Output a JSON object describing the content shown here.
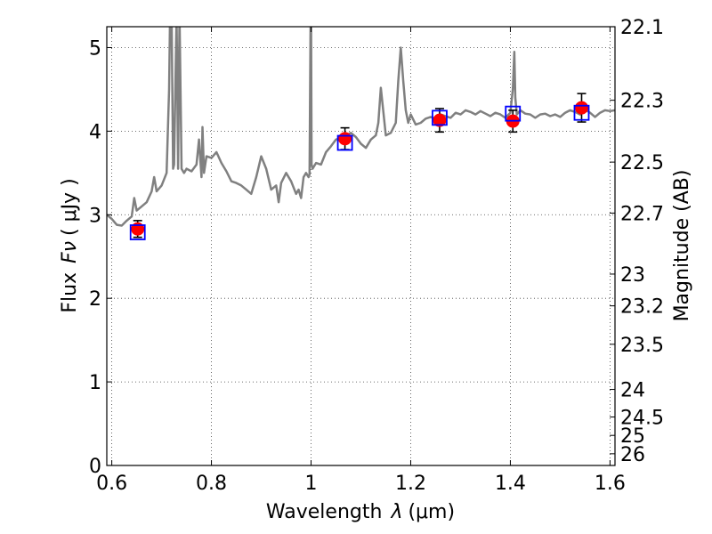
{
  "chart_data": {
    "type": "line",
    "xlabel": "Wavelength",
    "xlabel_symbol": "λ",
    "xlabel_unit": "(μm)",
    "ylabel": "Flux",
    "ylabel_symbol": "Fν",
    "ylabel_unit": "( μJy )",
    "y2label": "Magnitude (AB)",
    "xlim": [
      0.59,
      1.61
    ],
    "ylim": [
      0,
      5.25
    ],
    "grid": true,
    "x_ticks": [
      0.6,
      0.8,
      1.0,
      1.2,
      1.4,
      1.6
    ],
    "x_tick_labels": [
      "0.6",
      "0.8",
      "1",
      "1.2",
      "1.4",
      "1.6"
    ],
    "y_ticks": [
      0,
      1,
      2,
      3,
      4,
      5
    ],
    "y_tick_labels": [
      "0",
      "1",
      "2",
      "3",
      "4",
      "5"
    ],
    "y2_ticks": [
      {
        "label": "22.1",
        "flux": 5.25
      },
      {
        "label": "22.3",
        "flux": 4.37
      },
      {
        "label": "22.5",
        "flux": 3.63
      },
      {
        "label": "22.7",
        "flux": 3.02
      },
      {
        "label": "23",
        "flux": 2.29
      },
      {
        "label": "23.2",
        "flux": 1.91
      },
      {
        "label": "23.5",
        "flux": 1.45
      },
      {
        "label": "24",
        "flux": 0.91
      },
      {
        "label": "24.5",
        "flux": 0.58
      },
      {
        "label": "25",
        "flux": 0.36
      },
      {
        "label": "26",
        "flux": 0.14
      }
    ],
    "series": [
      {
        "style": "model spectrum",
        "color": "#808080",
        "x": [
          0.59,
          0.6,
          0.61,
          0.62,
          0.63,
          0.64,
          0.645,
          0.65,
          0.66,
          0.67,
          0.68,
          0.685,
          0.69,
          0.7,
          0.71,
          0.715,
          0.717,
          0.72,
          0.723,
          0.725,
          0.73,
          0.733,
          0.736,
          0.74,
          0.745,
          0.75,
          0.76,
          0.77,
          0.775,
          0.78,
          0.782,
          0.785,
          0.79,
          0.8,
          0.81,
          0.82,
          0.83,
          0.84,
          0.85,
          0.86,
          0.87,
          0.88,
          0.89,
          0.9,
          0.91,
          0.92,
          0.93,
          0.935,
          0.94,
          0.95,
          0.96,
          0.97,
          0.975,
          0.98,
          0.985,
          0.99,
          0.995,
          0.997,
          0.999,
          1.0,
          1.001,
          1.003,
          1.01,
          1.02,
          1.03,
          1.04,
          1.05,
          1.06,
          1.07,
          1.08,
          1.09,
          1.1,
          1.11,
          1.12,
          1.13,
          1.135,
          1.14,
          1.15,
          1.16,
          1.17,
          1.175,
          1.18,
          1.185,
          1.19,
          1.195,
          1.2,
          1.21,
          1.22,
          1.23,
          1.24,
          1.25,
          1.26,
          1.27,
          1.28,
          1.29,
          1.3,
          1.31,
          1.32,
          1.33,
          1.34,
          1.35,
          1.36,
          1.37,
          1.38,
          1.39,
          1.4,
          1.405,
          1.408,
          1.41,
          1.413,
          1.42,
          1.43,
          1.44,
          1.45,
          1.46,
          1.47,
          1.48,
          1.49,
          1.5,
          1.51,
          1.52,
          1.53,
          1.54,
          1.55,
          1.56,
          1.57,
          1.58,
          1.59,
          1.6,
          1.61
        ],
        "y": [
          3.0,
          2.95,
          2.88,
          2.87,
          2.93,
          2.98,
          3.2,
          3.05,
          3.1,
          3.15,
          3.28,
          3.45,
          3.28,
          3.35,
          3.5,
          4.5,
          5.4,
          5.4,
          3.55,
          3.6,
          5.4,
          3.55,
          5.4,
          3.55,
          3.5,
          3.55,
          3.52,
          3.6,
          3.9,
          3.45,
          4.05,
          3.5,
          3.7,
          3.68,
          3.75,
          3.62,
          3.52,
          3.4,
          3.38,
          3.35,
          3.3,
          3.25,
          3.45,
          3.7,
          3.55,
          3.3,
          3.35,
          3.15,
          3.38,
          3.5,
          3.4,
          3.25,
          3.3,
          3.2,
          3.45,
          3.5,
          3.45,
          3.48,
          5.4,
          5.4,
          3.6,
          3.55,
          3.62,
          3.6,
          3.75,
          3.82,
          3.9,
          3.92,
          3.95,
          3.98,
          3.93,
          3.85,
          3.8,
          3.9,
          3.95,
          4.1,
          4.52,
          3.95,
          3.98,
          4.1,
          4.6,
          5.0,
          4.6,
          4.25,
          4.1,
          4.2,
          4.08,
          4.1,
          4.15,
          4.17,
          4.15,
          4.2,
          4.18,
          4.16,
          4.22,
          4.2,
          4.25,
          4.23,
          4.2,
          4.24,
          4.21,
          4.18,
          4.22,
          4.2,
          4.16,
          4.22,
          4.5,
          4.95,
          4.4,
          4.2,
          4.25,
          4.21,
          4.2,
          4.16,
          4.2,
          4.21,
          4.18,
          4.2,
          4.17,
          4.22,
          4.25,
          4.23,
          4.2,
          4.26,
          4.22,
          4.17,
          4.22,
          4.25,
          4.24,
          4.25
        ]
      },
      {
        "style": "photometry",
        "color": "#ff0000",
        "marker": "circle",
        "x": [
          0.652,
          1.068,
          1.258,
          1.405,
          1.543
        ],
        "y": [
          2.83,
          3.91,
          4.13,
          4.12,
          4.28
        ],
        "yerr": [
          0.1,
          0.13,
          0.14,
          0.13,
          0.17
        ]
      },
      {
        "style": "model synthetic photometry",
        "color": "#0000ff",
        "marker": "open-square",
        "x": [
          0.652,
          1.068,
          1.258,
          1.405,
          1.543
        ],
        "y": [
          2.79,
          3.86,
          4.16,
          4.21,
          4.22
        ]
      }
    ]
  }
}
